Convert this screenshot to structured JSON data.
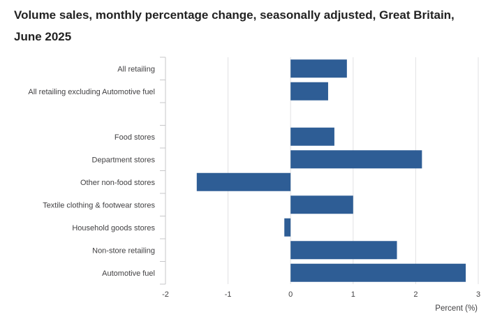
{
  "chart_data": {
    "type": "bar",
    "orientation": "horizontal",
    "title": "Volume sales, monthly percentage change, seasonally adjusted, Great Britain, June 2025",
    "xlabel": "Percent (%)",
    "ylabel": "",
    "xlim": [
      -2,
      3
    ],
    "xticks": [
      "-2",
      "-1",
      "0",
      "1",
      "2",
      "3"
    ],
    "grid": "vertical",
    "bar_color": "#2e5d95",
    "categories": [
      "All retailing",
      "All retailing excluding Automotive fuel",
      "",
      "Food stores",
      "Department stores",
      "Other non-food stores",
      "Textile clothing & footwear stores",
      "Household goods stores",
      "Non-store retailing",
      "Automotive fuel"
    ],
    "values": [
      0.9,
      0.6,
      null,
      0.7,
      2.1,
      -1.5,
      1.0,
      -0.1,
      1.7,
      2.8
    ]
  }
}
